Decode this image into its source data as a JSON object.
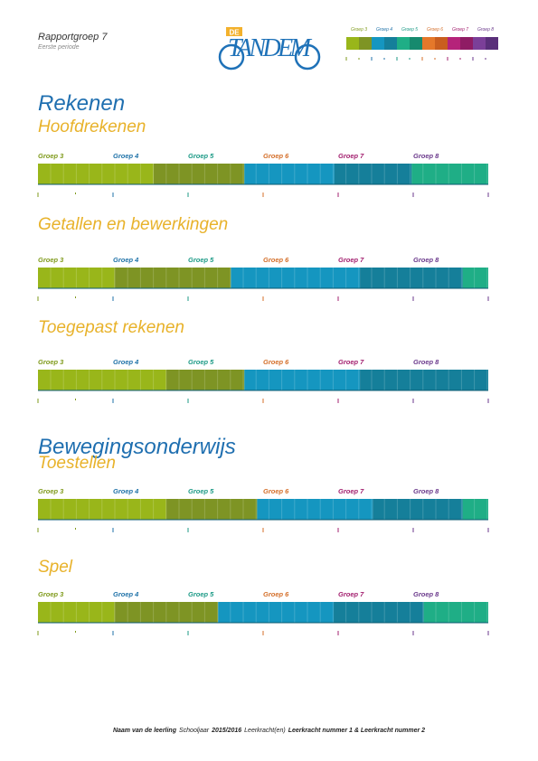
{
  "header": {
    "title": "Rapportgroep 7",
    "subtitle": "Eerste periode",
    "logo": {
      "prefix": "DE",
      "name": "TANDEM"
    }
  },
  "groups": [
    {
      "label": "Groep 3",
      "color": "#7f9a1b",
      "swatches": [
        "#99b61a",
        "#7e9424"
      ]
    },
    {
      "label": "Groep 4",
      "color": "#1f72a8",
      "swatches": [
        "#1596c0",
        "#157f9a"
      ]
    },
    {
      "label": "Groep 5",
      "color": "#1c9a86",
      "swatches": [
        "#1fae86",
        "#168a6e"
      ]
    },
    {
      "label": "Groep 6",
      "color": "#d46f2a",
      "swatches": [
        "#e5782a",
        "#c95e1f"
      ]
    },
    {
      "label": "Groep 7",
      "color": "#a3206f",
      "swatches": [
        "#b5237a",
        "#8f1c64"
      ]
    },
    {
      "label": "Groep 8",
      "color": "#6b3a8c",
      "swatches": [
        "#7b3f98",
        "#5a2f7a"
      ]
    }
  ],
  "scale": [
    3,
    9
  ],
  "sections": [
    {
      "title": "Rekenen",
      "subsections": [
        {
          "title": "Hoofdrekenen",
          "segments": [
            {
              "color": "#99b61a",
              "end": 4.54
            },
            {
              "color": "#7e9424",
              "end": 5.75
            },
            {
              "color": "#1596c0",
              "end": 6.95
            },
            {
              "color": "#157f9a",
              "end": 7.98
            },
            {
              "color": "#1fae86",
              "end": 9
            }
          ]
        },
        {
          "title": "Getallen en bewerkingen",
          "segments": [
            {
              "color": "#99b61a",
              "end": 4.02
            },
            {
              "color": "#7e9424",
              "end": 5.57
            },
            {
              "color": "#1596c0",
              "end": 7.29
            },
            {
              "color": "#157f9a",
              "end": 8.66
            },
            {
              "color": "#1fae86",
              "end": 9
            }
          ]
        },
        {
          "title": "Toegepast rekenen",
          "segments": [
            {
              "color": "#99b61a",
              "end": 4.71
            },
            {
              "color": "#7e9424",
              "end": 5.75
            },
            {
              "color": "#1596c0",
              "end": 7.29
            },
            {
              "color": "#157f9a",
              "end": 9
            }
          ]
        }
      ]
    },
    {
      "title": "Bewegingsonderwijs",
      "subsections": [
        {
          "title": "Toestellen",
          "segments": [
            {
              "color": "#99b61a",
              "end": 4.71
            },
            {
              "color": "#7e9424",
              "end": 5.92
            },
            {
              "color": "#1596c0",
              "end": 7.46
            },
            {
              "color": "#157f9a",
              "end": 8.66
            },
            {
              "color": "#1fae86",
              "end": 9
            }
          ]
        },
        {
          "title": "Spel",
          "segments": [
            {
              "color": "#99b61a",
              "end": 4.02
            },
            {
              "color": "#7e9424",
              "end": 5.4
            },
            {
              "color": "#1596c0",
              "end": 6.94
            },
            {
              "color": "#157f9a",
              "end": 8.14
            },
            {
              "color": "#1fae86",
              "end": 9
            }
          ]
        }
      ]
    }
  ],
  "footer": [
    {
      "text": "Naam van de leerling",
      "bold": true
    },
    {
      "text": "Schooljaar",
      "bold": false
    },
    {
      "text": "2015/2016",
      "bold": true
    },
    {
      "text": "Leerkracht(en)",
      "bold": false
    },
    {
      "text": "Leerkracht nummer 1 & Leerkracht nummer 2",
      "bold": true
    }
  ]
}
